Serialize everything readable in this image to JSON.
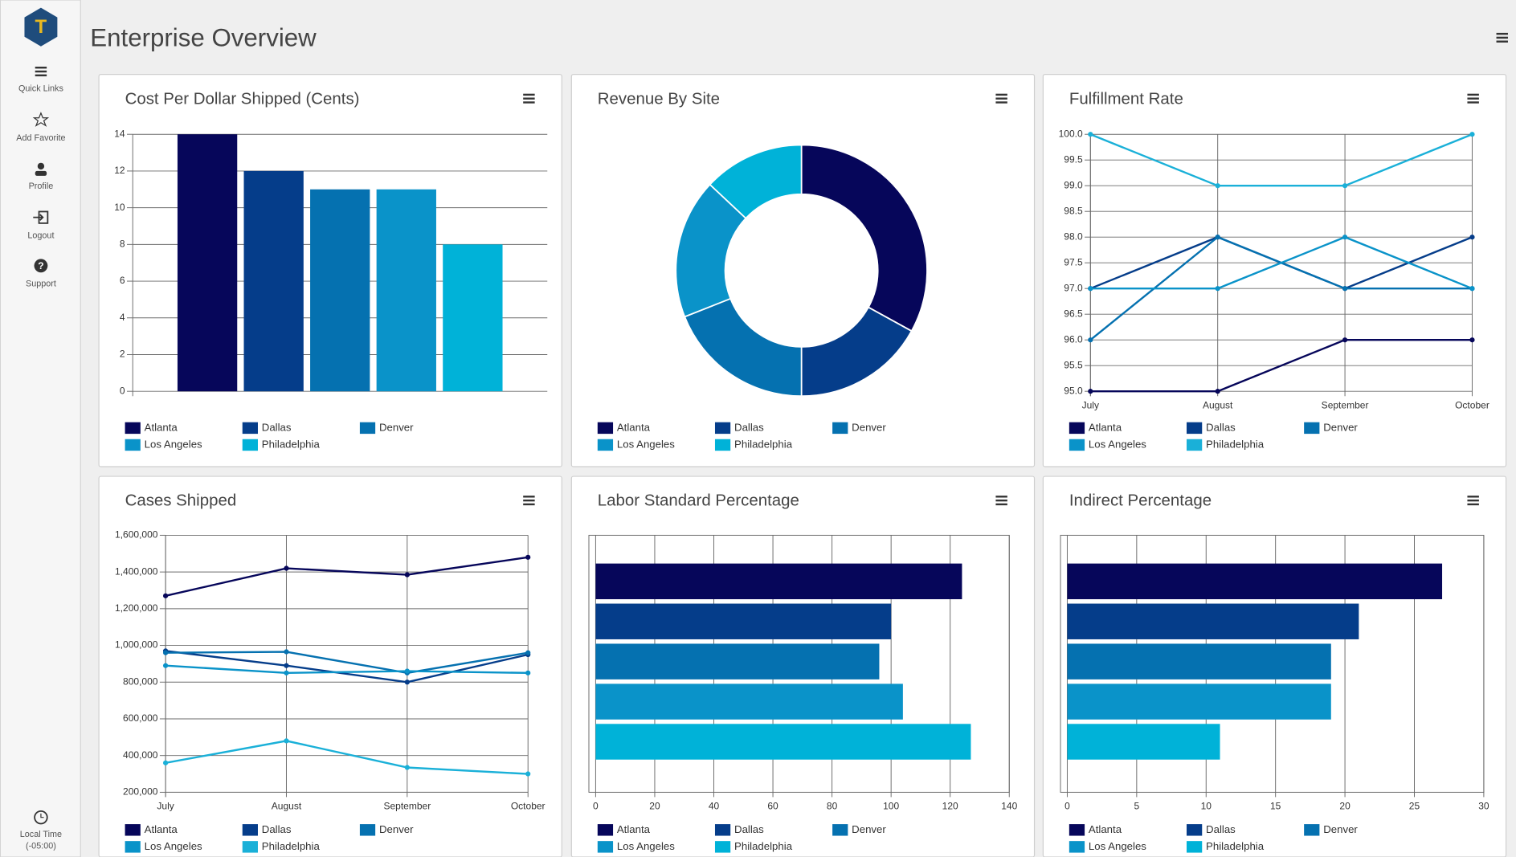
{
  "sidebar": {
    "items": [
      "Quick Links",
      "Add Favorite",
      "Profile",
      "Logout",
      "Support"
    ],
    "local_time": "Local Time",
    "timezone": "(-05:00)"
  },
  "header": {
    "title": "Enterprise Overview"
  },
  "chart_data": [
    {
      "type": "bar",
      "title": "Cost Per Dollar Shipped (Cents)",
      "series": [
        {
          "name": "Atlanta",
          "color": "#06065a",
          "values": [
            14
          ]
        },
        {
          "name": "Dallas",
          "color": "#053d8a",
          "values": [
            12
          ]
        },
        {
          "name": "Denver",
          "color": "#0571b0",
          "values": [
            11
          ]
        },
        {
          "name": "Los Angeles",
          "color": "#0a93c9",
          "values": [
            11
          ]
        },
        {
          "name": "Philadelphia",
          "color": "#00b2d8",
          "values": [
            8
          ]
        }
      ],
      "ylim": [
        0,
        14
      ],
      "yticks": [
        0,
        2,
        4,
        6,
        8,
        10,
        12,
        14
      ],
      "grid": true
    },
    {
      "type": "donut",
      "title": "Revenue By Site",
      "series": [
        {
          "name": "Atlanta",
          "color": "#06065a",
          "values": [
            33
          ]
        },
        {
          "name": "Dallas",
          "color": "#053d8a",
          "values": [
            17
          ]
        },
        {
          "name": "Denver",
          "color": "#0571b0",
          "values": [
            19
          ]
        },
        {
          "name": "Los Angeles",
          "color": "#0a93c9",
          "values": [
            18
          ]
        },
        {
          "name": "Philadelphia",
          "color": "#00b2d8",
          "values": [
            13
          ]
        }
      ]
    },
    {
      "type": "line",
      "title": "Fulfillment Rate",
      "categories": [
        "July",
        "August",
        "September",
        "October"
      ],
      "series": [
        {
          "name": "Atlanta",
          "color": "#06065a",
          "values": [
            95,
            95,
            96,
            96
          ]
        },
        {
          "name": "Dallas",
          "color": "#053d8a",
          "values": [
            97,
            98,
            97,
            98
          ]
        },
        {
          "name": "Denver",
          "color": "#0571b0",
          "values": [
            96,
            98,
            97,
            97
          ]
        },
        {
          "name": "Los Angeles",
          "color": "#0a93c9",
          "values": [
            97,
            97,
            98,
            97
          ]
        },
        {
          "name": "Philadelphia",
          "color": "#1ab0d8",
          "values": [
            100,
            99,
            99,
            100
          ]
        }
      ],
      "ylim": [
        95,
        100
      ],
      "yticks": [
        {
          "value": 95,
          "label": "95.0"
        },
        95.5,
        {
          "value": 96,
          "label": "96.0"
        },
        96.5,
        {
          "value": 97,
          "label": "97.0"
        },
        97.5,
        {
          "value": 98,
          "label": "98.0"
        },
        98.5,
        {
          "value": 99,
          "label": "99.0"
        },
        99.5,
        {
          "value": 100,
          "label": "100.0"
        }
      ],
      "grid": true
    },
    {
      "type": "line",
      "title": "Cases Shipped",
      "categories": [
        "July",
        "August",
        "September",
        "October"
      ],
      "series": [
        {
          "name": "Atlanta",
          "color": "#06065a",
          "values": [
            1270000,
            1420000,
            1385000,
            1480000
          ]
        },
        {
          "name": "Dallas",
          "color": "#053d8a",
          "values": [
            970000,
            890000,
            800000,
            950000
          ]
        },
        {
          "name": "Denver",
          "color": "#0571b0",
          "values": [
            960000,
            965000,
            850000,
            960000
          ]
        },
        {
          "name": "Los Angeles",
          "color": "#0a93c9",
          "values": [
            890000,
            850000,
            860000,
            850000
          ]
        },
        {
          "name": "Philadelphia",
          "color": "#1ab0d8",
          "values": [
            360000,
            480000,
            335000,
            300000
          ]
        }
      ],
      "ylim": [
        200000,
        1600000
      ],
      "yticks": [
        {
          "value": 200000,
          "label": "200,000"
        },
        {
          "value": 400000,
          "label": "400,000"
        },
        {
          "value": 600000,
          "label": "600,000"
        },
        {
          "value": 800000,
          "label": "800,000"
        },
        {
          "value": 1000000,
          "label": "1,000,000"
        },
        {
          "value": 1200000,
          "label": "1,200,000"
        },
        {
          "value": 1400000,
          "label": "1,400,000"
        },
        {
          "value": 1600000,
          "label": "1,600,000"
        }
      ],
      "grid": true
    },
    {
      "type": "hbar",
      "title": "Labor Standard Percentage",
      "series": [
        {
          "name": "Atlanta",
          "color": "#06065a",
          "values": [
            124
          ]
        },
        {
          "name": "Dallas",
          "color": "#053d8a",
          "values": [
            100
          ]
        },
        {
          "name": "Denver",
          "color": "#0571b0",
          "values": [
            96
          ]
        },
        {
          "name": "Los Angeles",
          "color": "#0a93c9",
          "values": [
            104
          ]
        },
        {
          "name": "Philadelphia",
          "color": "#00b2d8",
          "values": [
            127
          ]
        }
      ],
      "xlim": [
        0,
        140
      ],
      "xticks": [
        0,
        20,
        40,
        60,
        80,
        100,
        120,
        140
      ],
      "grid": true
    },
    {
      "type": "hbar",
      "title": "Indirect Percentage",
      "series": [
        {
          "name": "Atlanta",
          "color": "#06065a",
          "values": [
            27
          ]
        },
        {
          "name": "Dallas",
          "color": "#053d8a",
          "values": [
            21
          ]
        },
        {
          "name": "Denver",
          "color": "#0571b0",
          "values": [
            19
          ]
        },
        {
          "name": "Los Angeles",
          "color": "#0a93c9",
          "values": [
            19
          ]
        },
        {
          "name": "Philadelphia",
          "color": "#00b2d8",
          "values": [
            11
          ]
        }
      ],
      "xlim": [
        0,
        30
      ],
      "xticks": [
        0,
        5,
        10,
        15,
        20,
        25,
        30
      ],
      "grid": true
    }
  ]
}
